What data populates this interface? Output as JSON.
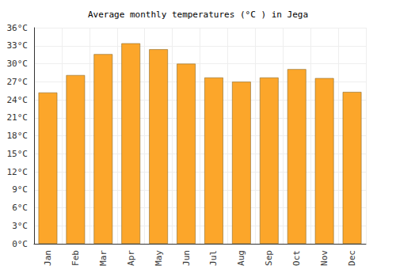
{
  "chart_data": {
    "type": "bar",
    "title": "Average monthly temperatures (°C ) in Jega",
    "categories": [
      "Jan",
      "Feb",
      "Mar",
      "Apr",
      "May",
      "Jun",
      "Jul",
      "Aug",
      "Sep",
      "Oct",
      "Nov",
      "Dec"
    ],
    "values": [
      25.2,
      28.1,
      31.6,
      33.4,
      32.4,
      30.0,
      27.7,
      27.0,
      27.7,
      29.1,
      27.6,
      25.3
    ],
    "color": "#fca62a",
    "ylim": [
      0,
      36
    ],
    "yticks": [
      {
        "value": 0,
        "label": "0°C"
      },
      {
        "value": 3,
        "label": "3°C"
      },
      {
        "value": 6,
        "label": "6°C"
      },
      {
        "value": 9,
        "label": "9°C"
      },
      {
        "value": 12,
        "label": "12°C"
      },
      {
        "value": 15,
        "label": "15°C"
      },
      {
        "value": 18,
        "label": "18°C"
      },
      {
        "value": 21,
        "label": "21°C"
      },
      {
        "value": 24,
        "label": "24°C"
      },
      {
        "value": 27,
        "label": "27°C"
      },
      {
        "value": 30,
        "label": "30°C"
      },
      {
        "value": 33,
        "label": "33°C"
      },
      {
        "value": 36,
        "label": "36°C"
      }
    ],
    "grid": true
  }
}
